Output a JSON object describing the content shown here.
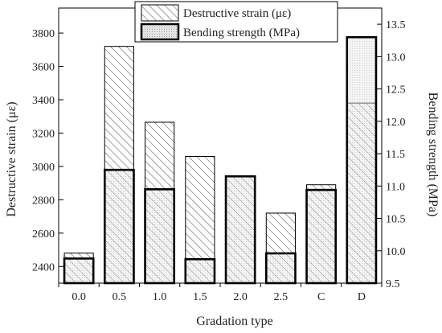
{
  "chart_data": {
    "type": "bar",
    "xlabel": "Gradation type",
    "categories": [
      "0.0",
      "0.5",
      "1.0",
      "1.5",
      "2.0",
      "2.5",
      "C",
      "D"
    ],
    "series": [
      {
        "name": "Destructive strain (με)",
        "axis": "left",
        "pattern": "diagonal-hatch",
        "values": [
          2480,
          3720,
          3265,
          3060,
          2940,
          2720,
          2890,
          3380
        ]
      },
      {
        "name": "Bending strength (MPa)",
        "axis": "right",
        "pattern": "fine-dots",
        "values": [
          9.88,
          11.25,
          10.95,
          9.87,
          11.15,
          9.96,
          10.94,
          13.3
        ]
      }
    ],
    "left_axis": {
      "label": "Destructive strain (με)",
      "ylim": [
        2300,
        3950
      ],
      "ticks": [
        2400,
        2600,
        2800,
        3000,
        3200,
        3400,
        3600,
        3800
      ]
    },
    "right_axis": {
      "label": "Bending strength (MPa)",
      "ylim": [
        9.5,
        13.75
      ],
      "ticks": [
        "9.5",
        "10.0",
        "10.5",
        "11.0",
        "11.5",
        "12.0",
        "12.5",
        "13.0",
        "13.5"
      ]
    },
    "legend_position": "top-center",
    "grid": false,
    "colors": {
      "bar_fill": "#e0e0e0",
      "stroke": "#000000",
      "hatch": "#555555"
    }
  }
}
